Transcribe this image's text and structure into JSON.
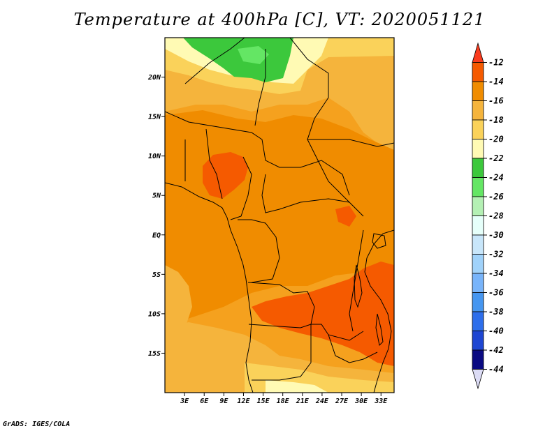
{
  "title": "Temperature at 400hPa [C], VT: 2020051121",
  "footer": "GrADS: IGES/COLA",
  "map": {
    "lat_ticks": [
      {
        "label": "20N",
        "lat": 20
      },
      {
        "label": "15N",
        "lat": 15
      },
      {
        "label": "10N",
        "lat": 10
      },
      {
        "label": "5N",
        "lat": 5
      },
      {
        "label": "EQ",
        "lat": 0
      },
      {
        "label": "5S",
        "lat": -5
      },
      {
        "label": "10S",
        "lat": -10
      },
      {
        "label": "15S",
        "lat": -15
      }
    ],
    "lon_ticks": [
      {
        "label": "3E",
        "lon": 3
      },
      {
        "label": "6E",
        "lon": 6
      },
      {
        "label": "9E",
        "lon": 9
      },
      {
        "label": "12E",
        "lon": 12
      },
      {
        "label": "15E",
        "lon": 15
      },
      {
        "label": "18E",
        "lon": 18
      },
      {
        "label": "21E",
        "lon": 21
      },
      {
        "label": "24E",
        "lon": 24
      },
      {
        "label": "27E",
        "lon": 27
      },
      {
        "label": "30E",
        "lon": 30
      },
      {
        "label": "33E",
        "lon": 33
      }
    ],
    "lat_range": [
      -20,
      25
    ],
    "lon_range": [
      0,
      35
    ]
  },
  "colorbar": {
    "labels": [
      "-12",
      "-14",
      "-16",
      "-18",
      "-20",
      "-22",
      "-24",
      "-26",
      "-28",
      "-30",
      "-32",
      "-34",
      "-36",
      "-38",
      "-40",
      "-42",
      "-44"
    ],
    "colors": [
      "#fa3c1e",
      "#f55a00",
      "#f08c00",
      "#f5b43c",
      "#fad25a",
      "#fffab4",
      "#3cc83c",
      "#64e664",
      "#b4f0b4",
      "#e6fffa",
      "#c8e6fa",
      "#a0d2fa",
      "#78b4fa",
      "#4696f0",
      "#2d6eeb",
      "#1e46d2",
      "#0a0a82",
      "#dcdcf5"
    ]
  }
}
